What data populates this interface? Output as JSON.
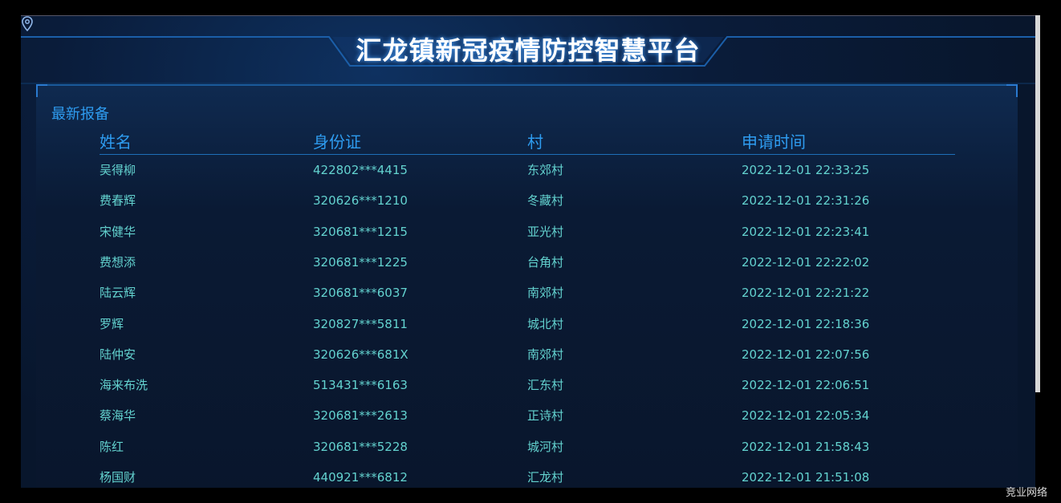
{
  "header": {
    "title": "汇龙镇新冠疫情防控智慧平台",
    "location_icon": "map-pin-icon"
  },
  "panel": {
    "title": "最新报备",
    "columns": [
      "姓名",
      "身份证",
      "村",
      "申请时间"
    ],
    "rows": [
      [
        "吴得柳",
        "422802***4415",
        "东郊村",
        "2022-12-01 22:33:25"
      ],
      [
        "费春辉",
        "320626***1210",
        "冬藏村",
        "2022-12-01 22:31:26"
      ],
      [
        "宋健华",
        "320681***1215",
        "亚光村",
        "2022-12-01 22:23:41"
      ],
      [
        "费想添",
        "320681***1225",
        "台角村",
        "2022-12-01 22:22:02"
      ],
      [
        "陆云辉",
        "320681***6037",
        "南郊村",
        "2022-12-01 22:21:22"
      ],
      [
        "罗辉",
        "320827***5811",
        "城北村",
        "2022-12-01 22:18:36"
      ],
      [
        "陆仲安",
        "320626***681X",
        "南郊村",
        "2022-12-01 22:07:56"
      ],
      [
        "海来布洗",
        "513431***6163",
        "汇东村",
        "2022-12-01 22:06:51"
      ],
      [
        "蔡海华",
        "320681***2613",
        "正诗村",
        "2022-12-01 22:05:34"
      ],
      [
        "陈红",
        "320681***5228",
        "城河村",
        "2022-12-01 21:58:43"
      ],
      [
        "杨国财",
        "440921***6812",
        "汇龙村",
        "2022-12-01 21:51:08"
      ]
    ]
  },
  "watermark": "竞业网络",
  "colors": {
    "accent": "#2e9cf0",
    "cell_text": "#63d2cf",
    "background": "#08162c"
  }
}
